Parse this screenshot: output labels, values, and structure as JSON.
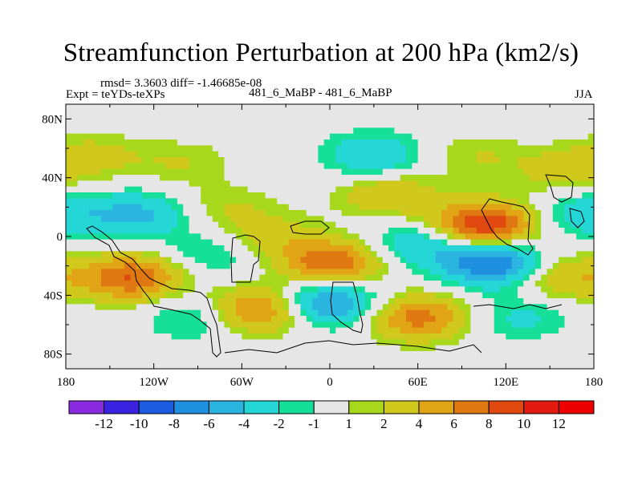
{
  "chart_data": {
    "type": "heatmap",
    "title": "Streamfunction Perturbation at 200 hPa (km2/s)",
    "stats": "rmsd= 3.3603 diff= -1.46685e-08",
    "experiment": "Expt = teYDs-teXPs",
    "run": "481_6_MaBP - 481_6_MaBP",
    "season": "JJA",
    "xlim": [
      -180,
      180
    ],
    "ylim": [
      -90,
      90
    ],
    "x_ticks": [
      {
        "value": -180,
        "label": "180"
      },
      {
        "value": -120,
        "label": "120W"
      },
      {
        "value": -60,
        "label": "60W"
      },
      {
        "value": 0,
        "label": "0"
      },
      {
        "value": 60,
        "label": "60E"
      },
      {
        "value": 120,
        "label": "120E"
      },
      {
        "value": 180,
        "label": "180"
      }
    ],
    "y_ticks": [
      {
        "value": 80,
        "label": "80N"
      },
      {
        "value": 40,
        "label": "40N"
      },
      {
        "value": 0,
        "label": "0"
      },
      {
        "value": -40,
        "label": "40S"
      },
      {
        "value": -80,
        "label": "80S"
      }
    ],
    "contour_levels": [
      -12,
      -10,
      -8,
      -6,
      -4,
      -2,
      -1,
      1,
      2,
      4,
      6,
      8,
      10,
      12
    ],
    "colorbar_labels": [
      "-12",
      "-10",
      "-8",
      "-6",
      "-4",
      "-2",
      "-1",
      "1",
      "2",
      "4",
      "6",
      "8",
      "10",
      "12"
    ],
    "colors": [
      "#8a2be2",
      "#3a22e0",
      "#1b5ce0",
      "#1f8fe0",
      "#2ab5e0",
      "#24d6d6",
      "#16df9a",
      "#e6e6e6",
      "#a8d81c",
      "#d0c81a",
      "#e0a414",
      "#e07812",
      "#e04a10",
      "#e21a10",
      "#ee0000"
    ],
    "centers": [
      {
        "lon": 105,
        "lat": 8,
        "value": 10.5
      },
      {
        "lon": 110,
        "lat": -18,
        "value": -8.5
      },
      {
        "lon": 2,
        "lat": -18,
        "value": 8
      },
      {
        "lon": 0,
        "lat": -45,
        "value": -7
      },
      {
        "lon": 60,
        "lat": -55,
        "value": 7
      },
      {
        "lon": -135,
        "lat": -28,
        "value": 8
      },
      {
        "lon": -50,
        "lat": -50,
        "value": 7
      },
      {
        "lon": -130,
        "lat": 15,
        "value": -4.5
      },
      {
        "lon": 40,
        "lat": 28,
        "value": 4
      },
      {
        "lon": 30,
        "lat": 55,
        "value": -4
      },
      {
        "lon": -160,
        "lat": 55,
        "value": 2.5
      },
      {
        "lon": -100,
        "lat": 50,
        "value": 2
      },
      {
        "lon": 100,
        "lat": 55,
        "value": 2
      },
      {
        "lon": 160,
        "lat": 45,
        "value": 3
      },
      {
        "lon": 175,
        "lat": 15,
        "value": -3.5
      },
      {
        "lon": -70,
        "lat": 20,
        "value": 2
      },
      {
        "lon": 160,
        "lat": -28,
        "value": 4
      },
      {
        "lon": -80,
        "lat": -12,
        "value": -2.5
      },
      {
        "lon": -90,
        "lat": -55,
        "value": -3
      },
      {
        "lon": 130,
        "lat": -55,
        "value": -2.5
      },
      {
        "lon": -40,
        "lat": 0,
        "value": 3
      },
      {
        "lon": 60,
        "lat": -5,
        "value": -4
      }
    ]
  }
}
